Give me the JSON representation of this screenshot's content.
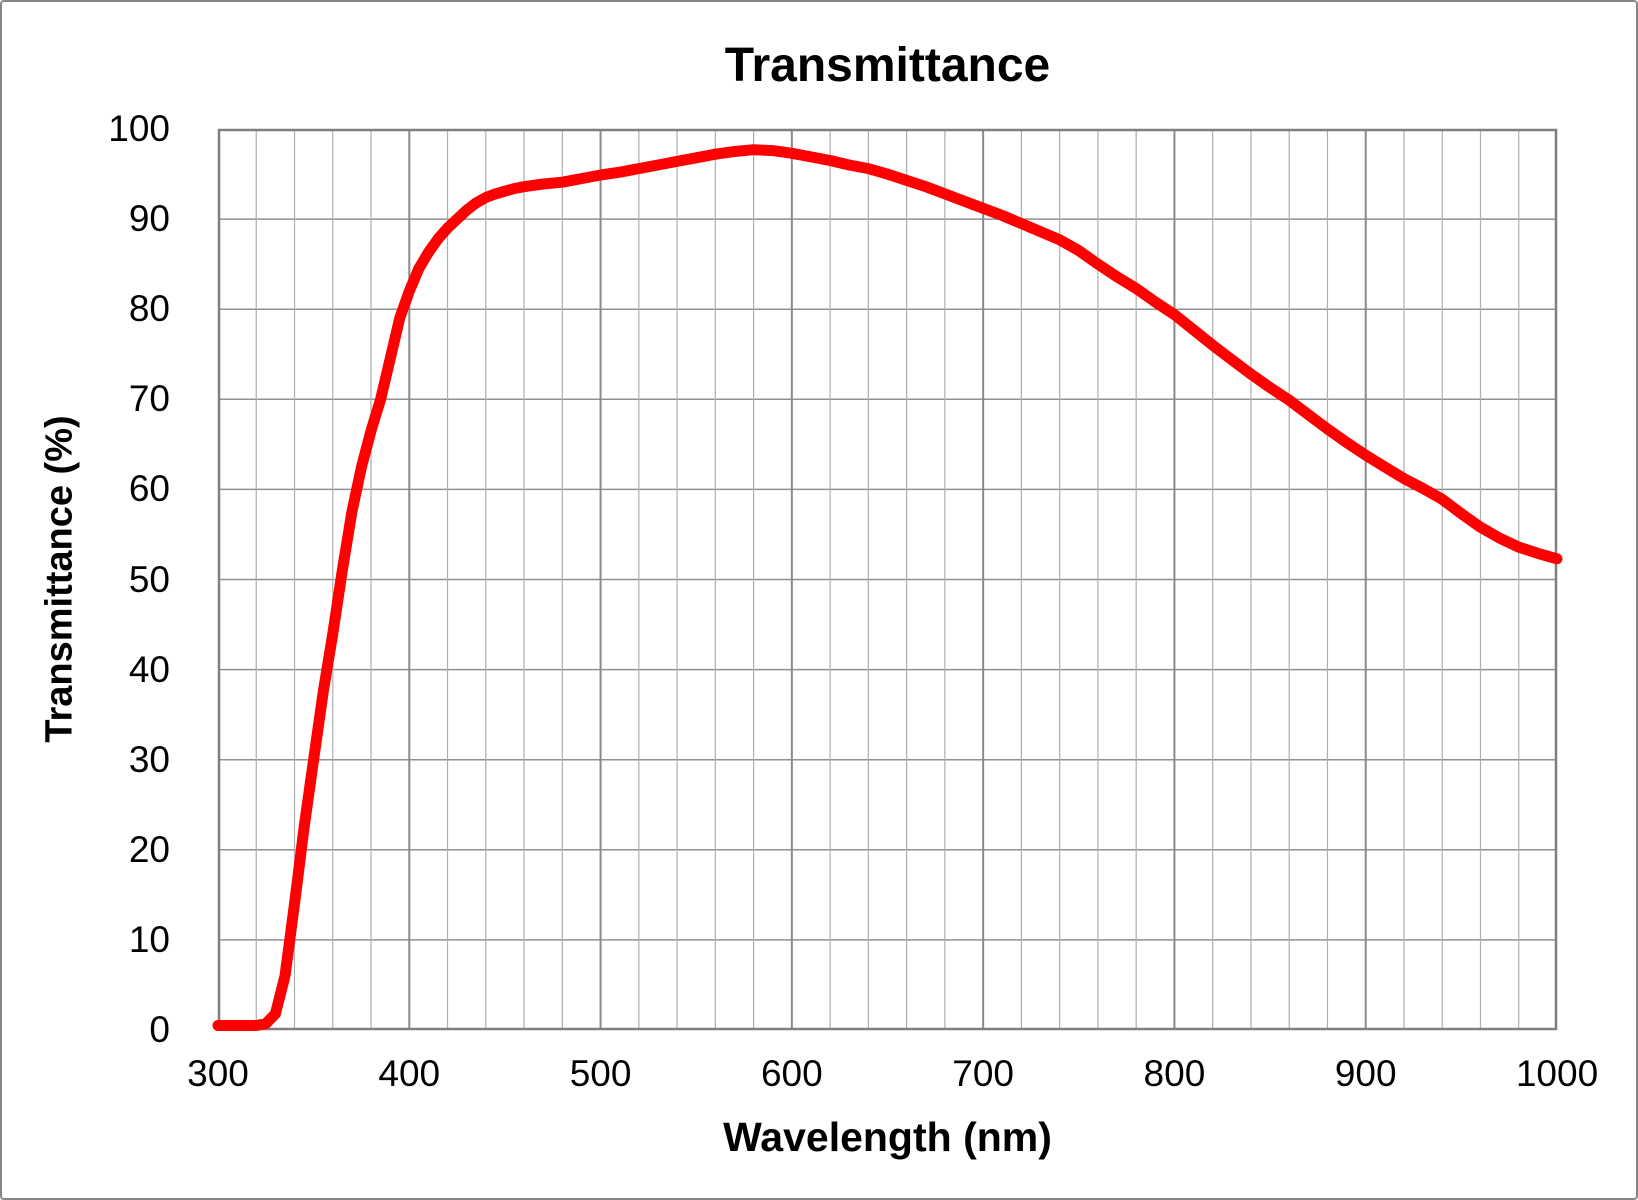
{
  "page": {
    "background_color": "#ffffff",
    "frame_border_color": "#868686"
  },
  "chart_data": {
    "type": "line",
    "title": "Transmittance",
    "xlabel": "Wavelength (nm)",
    "ylabel": "Transmittance (%)",
    "xlim": [
      300,
      1000
    ],
    "ylim": [
      0,
      100
    ],
    "x_major_ticks": [
      300,
      400,
      500,
      600,
      700,
      800,
      900,
      1000
    ],
    "x_tick_labels": [
      "300",
      "400",
      "500",
      "600",
      "700",
      "800",
      "900",
      "1000"
    ],
    "x_minor_step": 20,
    "y_major_ticks": [
      0,
      10,
      20,
      30,
      40,
      50,
      60,
      70,
      80,
      90,
      100
    ],
    "y_tick_labels": [
      "0",
      "10",
      "20",
      "30",
      "40",
      "50",
      "60",
      "70",
      "80",
      "90",
      "100"
    ],
    "grid": "on",
    "legend": "none",
    "colors": {
      "line": "#ff0000",
      "grid_horizontal": "#909090",
      "grid_vertical_minor": "#aeaeae",
      "grid_vertical_major": "#8a8a8a",
      "plot_border": "#7f7f7f"
    },
    "series": [
      {
        "name": "Transmittance",
        "color": "#ff0000",
        "stroke_width": 11,
        "points": [
          [
            300,
            0.5
          ],
          [
            305,
            0.5
          ],
          [
            310,
            0.5
          ],
          [
            315,
            0.5
          ],
          [
            320,
            0.5
          ],
          [
            325,
            0.7
          ],
          [
            330,
            1.8
          ],
          [
            335,
            6
          ],
          [
            340,
            14
          ],
          [
            345,
            22.5
          ],
          [
            350,
            30
          ],
          [
            355,
            37.5
          ],
          [
            360,
            44
          ],
          [
            365,
            51
          ],
          [
            370,
            57.5
          ],
          [
            375,
            62.5
          ],
          [
            380,
            66.5
          ],
          [
            385,
            70
          ],
          [
            390,
            74.5
          ],
          [
            395,
            79
          ],
          [
            400,
            82
          ],
          [
            405,
            84.5
          ],
          [
            410,
            86.3
          ],
          [
            415,
            87.8
          ],
          [
            420,
            89
          ],
          [
            425,
            90
          ],
          [
            430,
            91
          ],
          [
            435,
            91.8
          ],
          [
            440,
            92.4
          ],
          [
            445,
            92.8
          ],
          [
            450,
            93.1
          ],
          [
            455,
            93.4
          ],
          [
            460,
            93.6
          ],
          [
            470,
            93.9
          ],
          [
            480,
            94.1
          ],
          [
            490,
            94.5
          ],
          [
            500,
            94.9
          ],
          [
            510,
            95.2
          ],
          [
            520,
            95.6
          ],
          [
            530,
            96
          ],
          [
            540,
            96.4
          ],
          [
            550,
            96.8
          ],
          [
            560,
            97.2
          ],
          [
            570,
            97.5
          ],
          [
            580,
            97.7
          ],
          [
            590,
            97.6
          ],
          [
            600,
            97.3
          ],
          [
            610,
            96.9
          ],
          [
            620,
            96.5
          ],
          [
            630,
            96
          ],
          [
            640,
            95.6
          ],
          [
            650,
            95
          ],
          [
            660,
            94.3
          ],
          [
            670,
            93.6
          ],
          [
            680,
            92.8
          ],
          [
            690,
            92
          ],
          [
            700,
            91.2
          ],
          [
            710,
            90.4
          ],
          [
            720,
            89.5
          ],
          [
            730,
            88.6
          ],
          [
            740,
            87.7
          ],
          [
            750,
            86.5
          ],
          [
            760,
            85
          ],
          [
            770,
            83.6
          ],
          [
            780,
            82.3
          ],
          [
            790,
            80.8
          ],
          [
            800,
            79.4
          ],
          [
            810,
            77.7
          ],
          [
            820,
            76
          ],
          [
            830,
            74.4
          ],
          [
            840,
            72.8
          ],
          [
            850,
            71.3
          ],
          [
            860,
            69.9
          ],
          [
            870,
            68.3
          ],
          [
            880,
            66.7
          ],
          [
            890,
            65.2
          ],
          [
            900,
            63.8
          ],
          [
            910,
            62.5
          ],
          [
            920,
            61.2
          ],
          [
            930,
            60.1
          ],
          [
            940,
            58.9
          ],
          [
            950,
            57.3
          ],
          [
            960,
            55.8
          ],
          [
            970,
            54.6
          ],
          [
            980,
            53.6
          ],
          [
            990,
            52.9
          ],
          [
            1000,
            52.3
          ]
        ]
      }
    ]
  }
}
